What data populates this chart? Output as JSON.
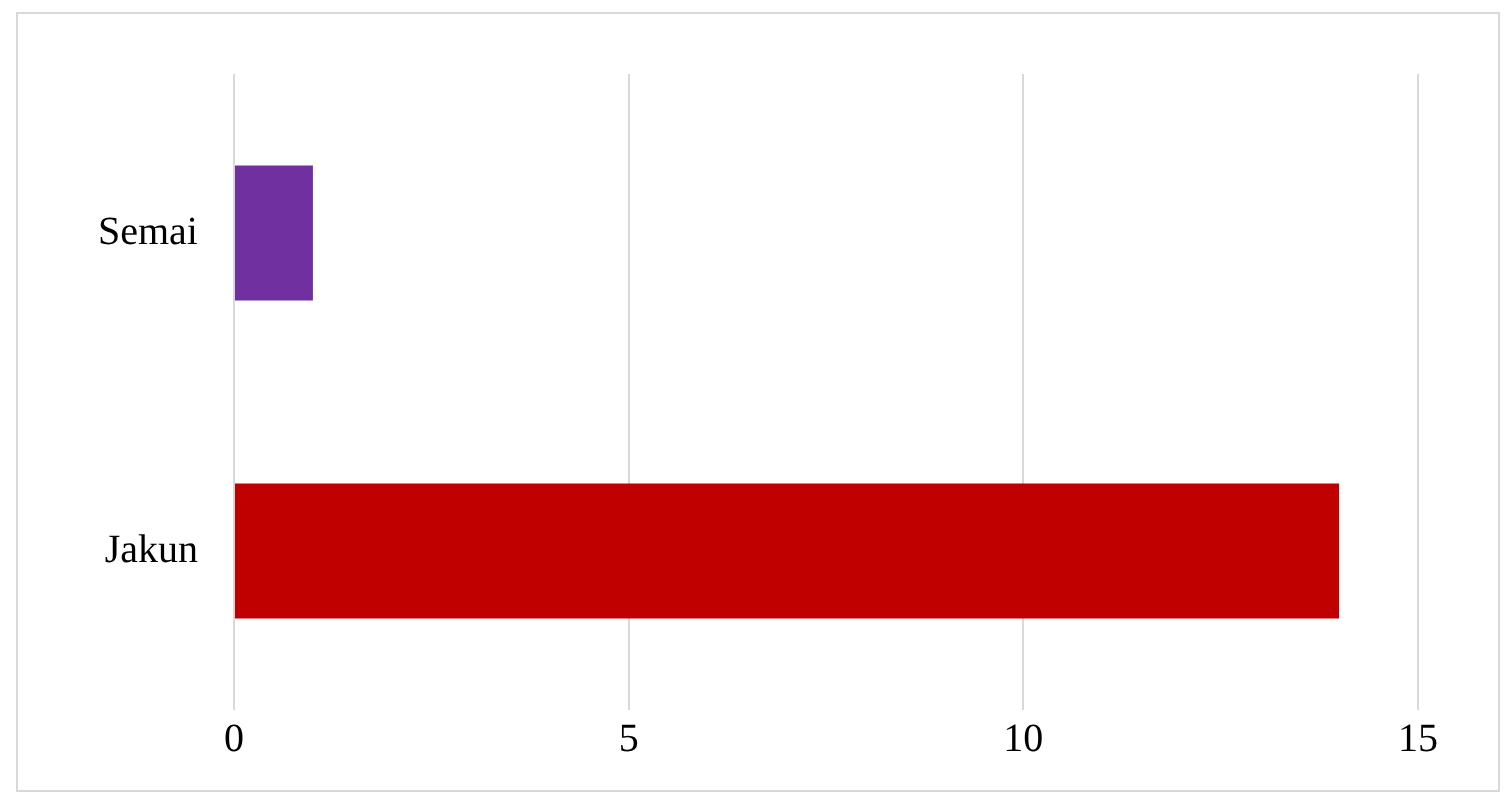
{
  "chart_data": {
    "type": "bar",
    "orientation": "horizontal",
    "categories": [
      "Semai",
      "Jakun"
    ],
    "values": [
      1,
      14
    ],
    "colors": [
      "#7030a0",
      "#c00000"
    ],
    "xlim": [
      0,
      15
    ],
    "xticks": [
      0,
      5,
      10,
      15
    ],
    "grid": "x",
    "legend": false
  }
}
